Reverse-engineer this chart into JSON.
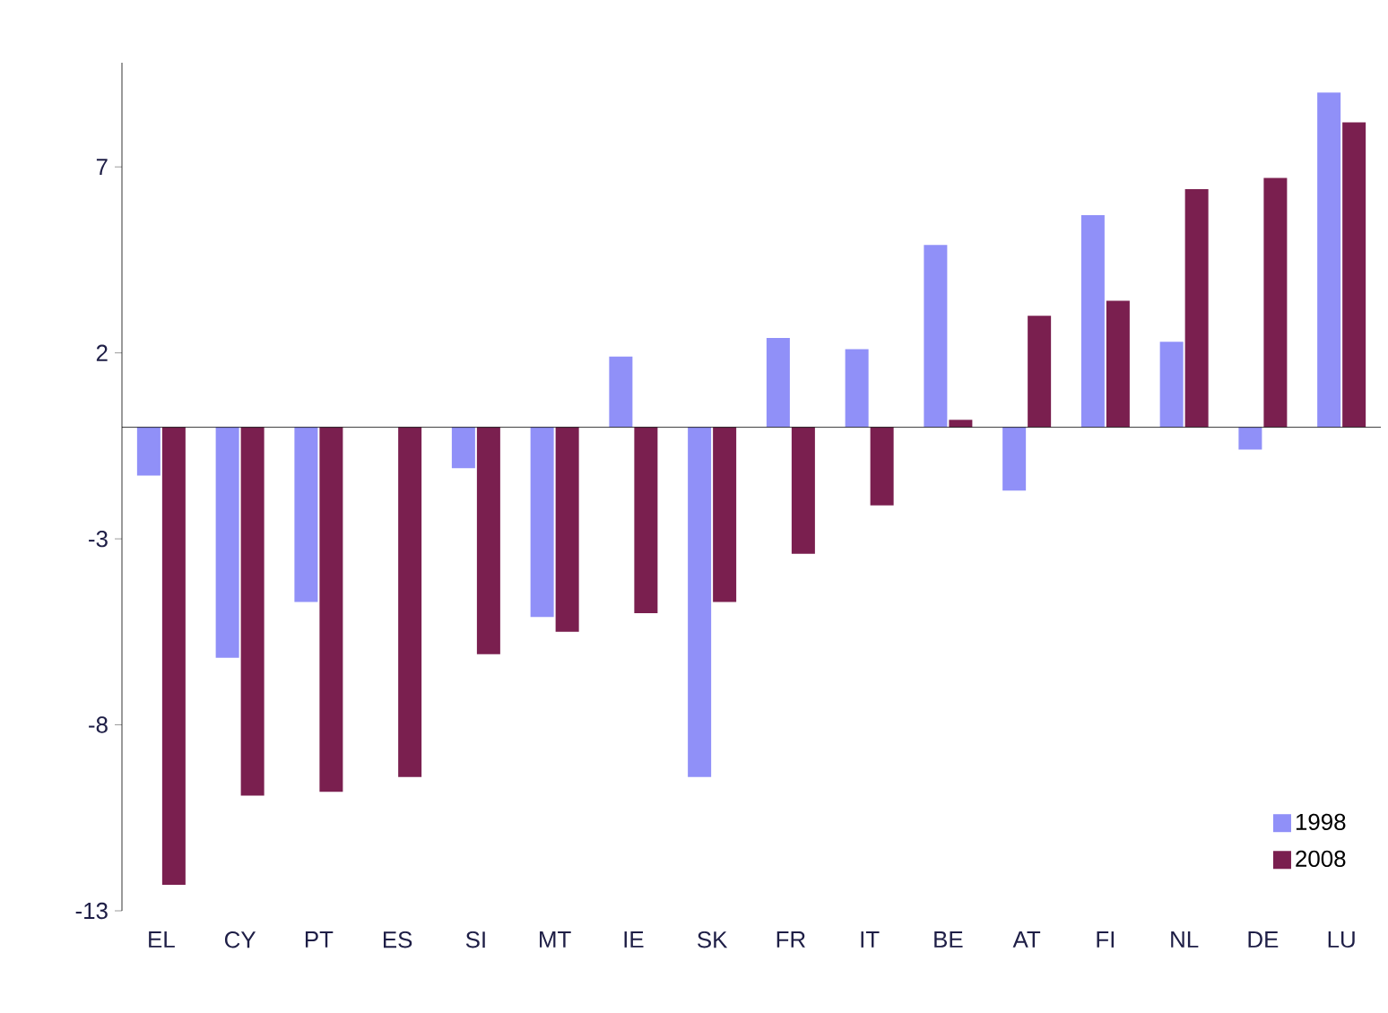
{
  "chart_data": {
    "type": "bar",
    "categories": [
      "EL",
      "CY",
      "PT",
      "ES",
      "SI",
      "MT",
      "IE",
      "SK",
      "FR",
      "IT",
      "BE",
      "AT",
      "FI",
      "NL",
      "DE",
      "LU"
    ],
    "series": [
      {
        "name": "1998",
        "color": "#9090f8",
        "values": [
          -1.3,
          -6.2,
          -4.7,
          null,
          -1.1,
          -5.1,
          1.9,
          -9.4,
          2.4,
          2.1,
          4.9,
          -1.7,
          5.7,
          2.3,
          -0.6,
          9.0
        ]
      },
      {
        "name": "2008",
        "color": "#7a1f4f",
        "values": [
          -12.3,
          -9.9,
          -9.8,
          -9.4,
          -6.1,
          -5.5,
          -5.0,
          -4.7,
          -3.4,
          -2.1,
          0.2,
          3.0,
          3.4,
          6.4,
          6.7,
          8.2
        ]
      }
    ],
    "ylim": [
      -13,
      9.8
    ],
    "yticks": [
      -13,
      -8,
      -3,
      2,
      7
    ],
    "legend": "bottom right"
  }
}
